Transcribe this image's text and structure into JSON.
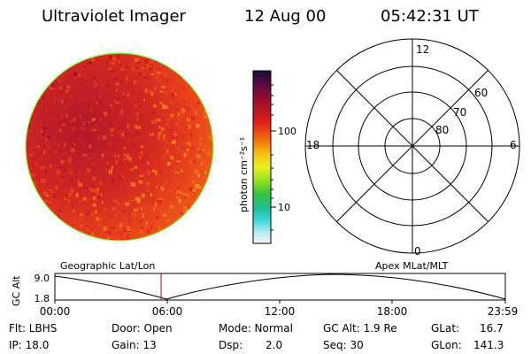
{
  "header": {
    "title": "Ultraviolet Imager",
    "date": "12 Aug 00",
    "time": "05:42:31 UT"
  },
  "colorbar": {
    "unit_label": "photon cm⁻²s⁻¹",
    "ticks": [
      "100",
      "10"
    ]
  },
  "polar_plot": {
    "mlt_labels": [
      "12",
      "18",
      "6",
      "0"
    ],
    "lat_labels": [
      "60",
      "70",
      "80"
    ]
  },
  "altitude_panel": {
    "axis_label": "GC Alt",
    "y_ticks": [
      "9.0",
      "1.8"
    ],
    "left_label": "Geographic Lat/Lon",
    "right_label": "Apex MLat/MLT",
    "x_ticks": [
      "00:00",
      "06:00",
      "12:00",
      "18:00",
      "23:59"
    ]
  },
  "info": {
    "flt": "Flt: LBHS",
    "ip": "IP: 18.0",
    "door": "Door: Open",
    "gain": "Gain: 13",
    "mode": "Mode: Normal",
    "dsp_label": "Dsp:",
    "dsp_value": "2.0",
    "gc_alt": "GC Alt: 1.9 Re",
    "seq": "Seq: 30",
    "glat_label": "GLat:",
    "glat_value": "16.7",
    "glon_label": "GLon:",
    "glon_value": "141.3"
  },
  "colors": {
    "frame": "#000000",
    "marker": "#cc0000",
    "image_base": "#e8321e",
    "image_edge": "#80ff40"
  }
}
